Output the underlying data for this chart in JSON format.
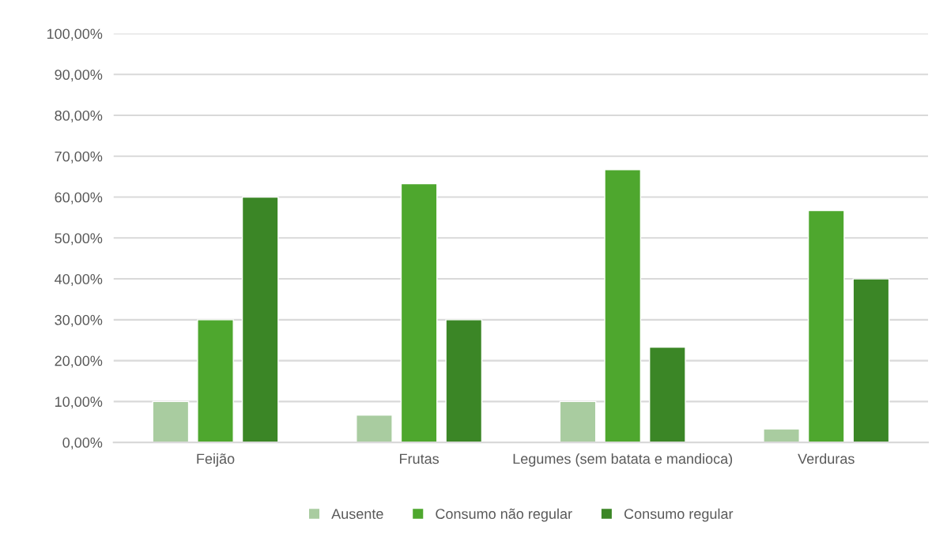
{
  "chart_data": {
    "type": "bar",
    "categories": [
      "Feijão",
      "Frutas",
      "Legumes (sem batata e mandioca)",
      "Verduras"
    ],
    "series": [
      {
        "name": "Ausente",
        "color": "#a9cca0",
        "values": [
          10.0,
          6.7,
          10.0,
          3.3
        ]
      },
      {
        "name": "Consumo não regular",
        "color": "#4ea72e",
        "values": [
          30.0,
          63.3,
          66.7,
          56.7
        ]
      },
      {
        "name": "Consumo regular",
        "color": "#3b8626",
        "values": [
          60.0,
          30.0,
          23.3,
          40.0
        ]
      }
    ],
    "ylim": [
      0,
      100
    ],
    "yticks": [
      {
        "value": 0,
        "label": "0,00%"
      },
      {
        "value": 10,
        "label": "10,00%"
      },
      {
        "value": 20,
        "label": "20,00%"
      },
      {
        "value": 30,
        "label": "30,00%"
      },
      {
        "value": 40,
        "label": "40,00%"
      },
      {
        "value": 50,
        "label": "50,00%"
      },
      {
        "value": 60,
        "label": "60,00%"
      },
      {
        "value": 70,
        "label": "70,00%"
      },
      {
        "value": 80,
        "label": "80,00%"
      },
      {
        "value": 90,
        "label": "90,00%"
      },
      {
        "value": 100,
        "label": "100,00%"
      }
    ],
    "grid": "y",
    "legend": "bottom"
  }
}
